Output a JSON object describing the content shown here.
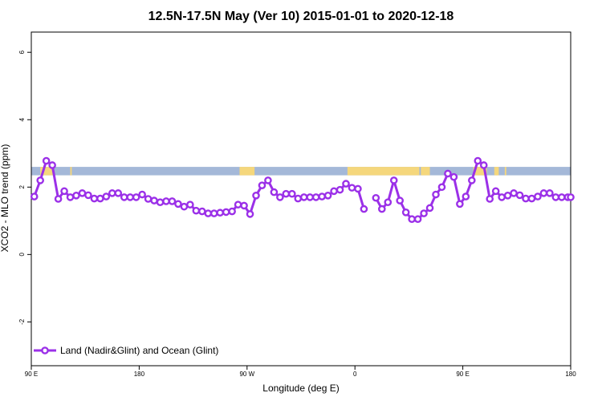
{
  "chart_data": {
    "type": "line",
    "title": "12.5N-17.5N May (Ver 10)   2015-01-01 to 2020-12-18",
    "xlabel": "Longitude (deg E)",
    "ylabel": "XCO2 - MLO trend (ppm)",
    "xlim": [
      90,
      450
    ],
    "ylim": [
      -3.3,
      6.6
    ],
    "x_ticks": [
      {
        "value": 90,
        "label": "90 E"
      },
      {
        "value": 162,
        "label": "180"
      },
      {
        "value": 234,
        "label": "90 W"
      },
      {
        "value": 306,
        "label": "0"
      },
      {
        "value": 378,
        "label": "90 E"
      },
      {
        "value": 450,
        "label": "180"
      }
    ],
    "y_ticks": [
      {
        "value": -2,
        "label": "-2"
      },
      {
        "value": 0,
        "label": "0"
      },
      {
        "value": 2,
        "label": "2"
      },
      {
        "value": 4,
        "label": "4"
      },
      {
        "value": 6,
        "label": "6"
      }
    ],
    "band": {
      "ymin": 2.35,
      "ymax": 2.6,
      "ocean_color": "#a4b8d8",
      "land_color": "#f5d77c"
    },
    "land_segments": [
      [
        96,
        105
      ],
      [
        116,
        117
      ],
      [
        229,
        239
      ],
      [
        301,
        349
      ],
      [
        350,
        356
      ],
      [
        385,
        394
      ],
      [
        399,
        400
      ],
      [
        400,
        402
      ],
      [
        400,
        401
      ],
      [
        406,
        407
      ],
      [
        488,
        489
      ]
    ],
    "series": [
      {
        "name": "Land (Nadir&Glint) and Ocean (Glint)",
        "color": "#9b30e8",
        "segments": [
          {
            "x": [
              92,
              96,
              100,
              104,
              108,
              112,
              116,
              120,
              124,
              128,
              132,
              136,
              140,
              144,
              148,
              152,
              156,
              160,
              164,
              168,
              172,
              176,
              180,
              184,
              188,
              192,
              196,
              200,
              204,
              208,
              212,
              216,
              220,
              224,
              228,
              232,
              236,
              240,
              244,
              248,
              252,
              256,
              260,
              264,
              268,
              272,
              276,
              280,
              284,
              288,
              292,
              296,
              300,
              304,
              308,
              312
            ],
            "y": [
              1.72,
              2.2,
              2.78,
              2.65,
              1.65,
              1.88,
              1.7,
              1.75,
              1.82,
              1.76,
              1.66,
              1.66,
              1.72,
              1.82,
              1.82,
              1.7,
              1.7,
              1.7,
              1.78,
              1.65,
              1.6,
              1.55,
              1.58,
              1.58,
              1.5,
              1.42,
              1.48,
              1.3,
              1.28,
              1.22,
              1.22,
              1.24,
              1.26,
              1.28,
              1.48,
              1.45,
              1.2,
              1.75,
              2.05,
              2.2,
              1.85,
              1.7,
              1.8,
              1.8,
              1.66,
              1.7,
              1.7,
              1.7,
              1.72,
              1.75,
              1.88,
              1.92,
              2.1,
              1.98,
              1.95,
              1.35
            ]
          },
          {
            "x": [
              320,
              324,
              328,
              332,
              336,
              340,
              344,
              348,
              352,
              356,
              360,
              364,
              368,
              372,
              376,
              380,
              384,
              388,
              392,
              396,
              400,
              404,
              408,
              412,
              416,
              420,
              424,
              428,
              432,
              436,
              440,
              444,
              448,
              450
            ],
            "y": [
              1.68,
              1.35,
              1.55,
              2.2,
              1.6,
              1.25,
              1.05,
              1.05,
              1.22,
              1.38,
              1.78,
              2.0,
              2.4,
              2.3,
              1.5,
              1.72,
              2.2,
              2.78,
              2.65,
              1.65,
              1.88,
              1.7,
              1.75,
              1.82,
              1.76,
              1.66,
              1.66,
              1.72,
              1.82,
              1.82,
              1.7,
              1.7,
              1.7,
              1.7
            ]
          }
        ]
      }
    ],
    "legend_position": "bottom-left",
    "grid": false
  }
}
